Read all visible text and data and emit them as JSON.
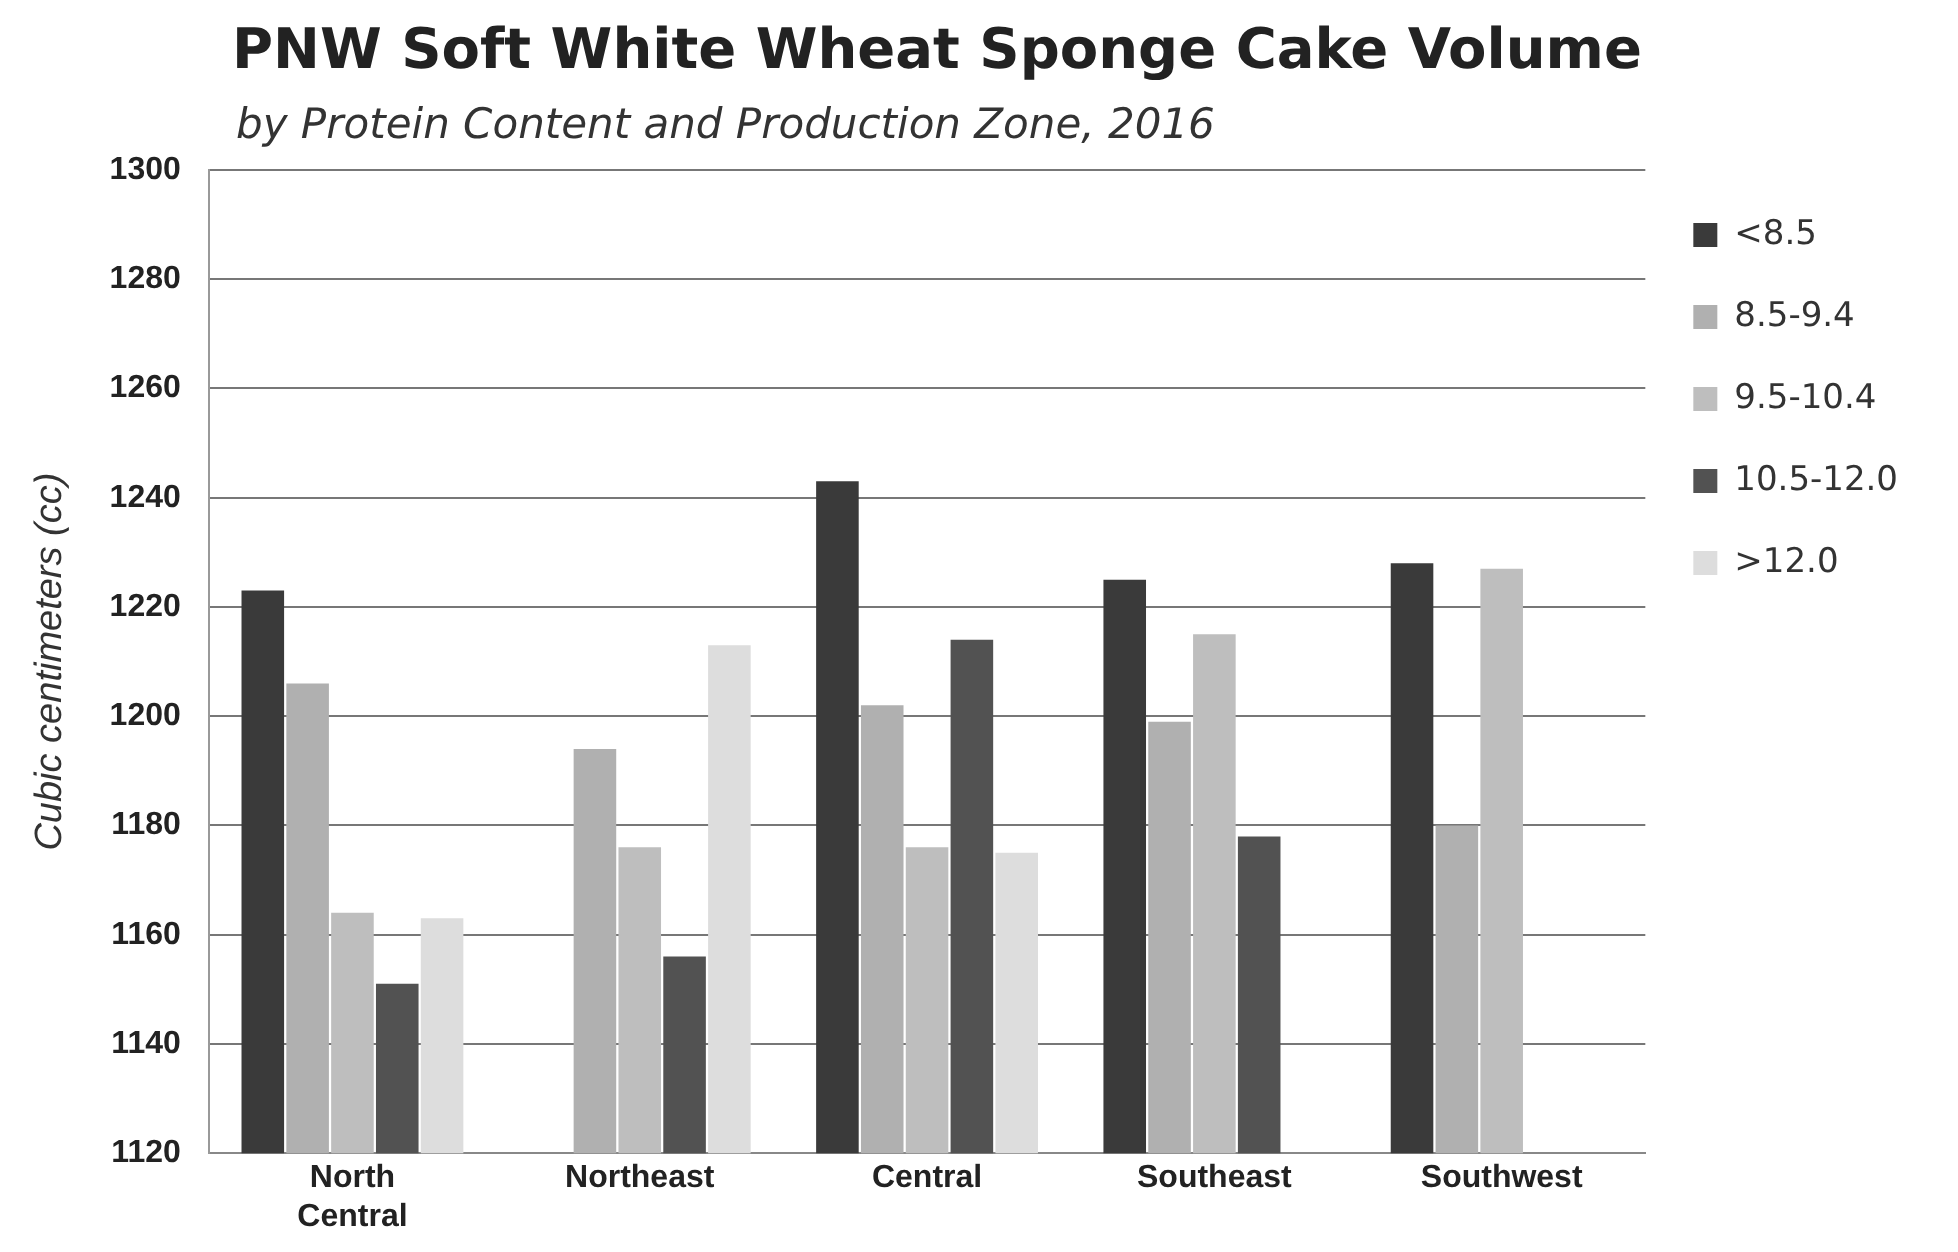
{
  "chart_data": {
    "type": "bar",
    "title": "PNW Soft White Wheat Sponge Cake Volume",
    "subtitle": "by Protein Content and Production Zone, 2016",
    "ylabel": "Cubic centimeters (cc)",
    "categories": [
      "North Central",
      "Northeast",
      "Central",
      "Southeast",
      "Southwest"
    ],
    "series": [
      {
        "name": "<8.5",
        "color": "#3a3a3a",
        "values": [
          1223,
          null,
          1243,
          1225,
          1228
        ]
      },
      {
        "name": "8.5-9.4",
        "color": "#b0b0b0",
        "values": [
          1206,
          1194,
          1202,
          1199,
          1180
        ]
      },
      {
        "name": "9.5-10.4",
        "color": "#bebebe",
        "values": [
          1164,
          1176,
          1176,
          1215,
          1227
        ]
      },
      {
        "name": "10.5-12.0",
        "color": "#525252",
        "values": [
          1151,
          1156,
          1214,
          1178,
          null
        ]
      },
      {
        "name": ">12.0",
        "color": "#dddddd",
        "values": [
          1163,
          1213,
          1175,
          null,
          null
        ]
      }
    ],
    "ylim": [
      1120,
      1300
    ],
    "yticks": [
      1120,
      1140,
      1160,
      1180,
      1200,
      1220,
      1240,
      1260,
      1280,
      1300
    ],
    "grid": "y",
    "legend": "right"
  }
}
